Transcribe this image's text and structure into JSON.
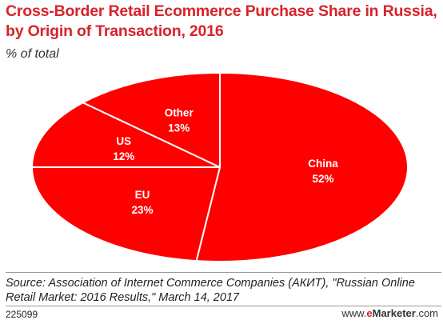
{
  "header": {
    "title": "Cross-Border Retail Ecommerce Purchase Share in Russia, by Origin of Transaction, 2016",
    "subtitle": "% of total"
  },
  "chart_data": {
    "type": "pie",
    "title": "Cross-Border Retail Ecommerce Purchase Share in Russia, by Origin of Transaction, 2016",
    "subtitle": "% of total",
    "unit": "%",
    "slices": [
      {
        "label": "China",
        "value": 52,
        "display": "52%"
      },
      {
        "label": "EU",
        "value": 23,
        "display": "23%"
      },
      {
        "label": "US",
        "value": 12,
        "display": "12%"
      },
      {
        "label": "Other",
        "value": 13,
        "display": "13%"
      }
    ],
    "colors": {
      "fill": "#ff0000",
      "stroke": "#ffffff"
    }
  },
  "footer": {
    "source": "Source: Association of Internet Commerce Companies (АКИТ), \"Russian Online Retail Market: 2016 Results,\" March 14, 2017",
    "id": "225099",
    "brand_prefix": "www.",
    "brand_e": "e",
    "brand_name": "Marketer",
    "brand_suffix": ".com"
  }
}
